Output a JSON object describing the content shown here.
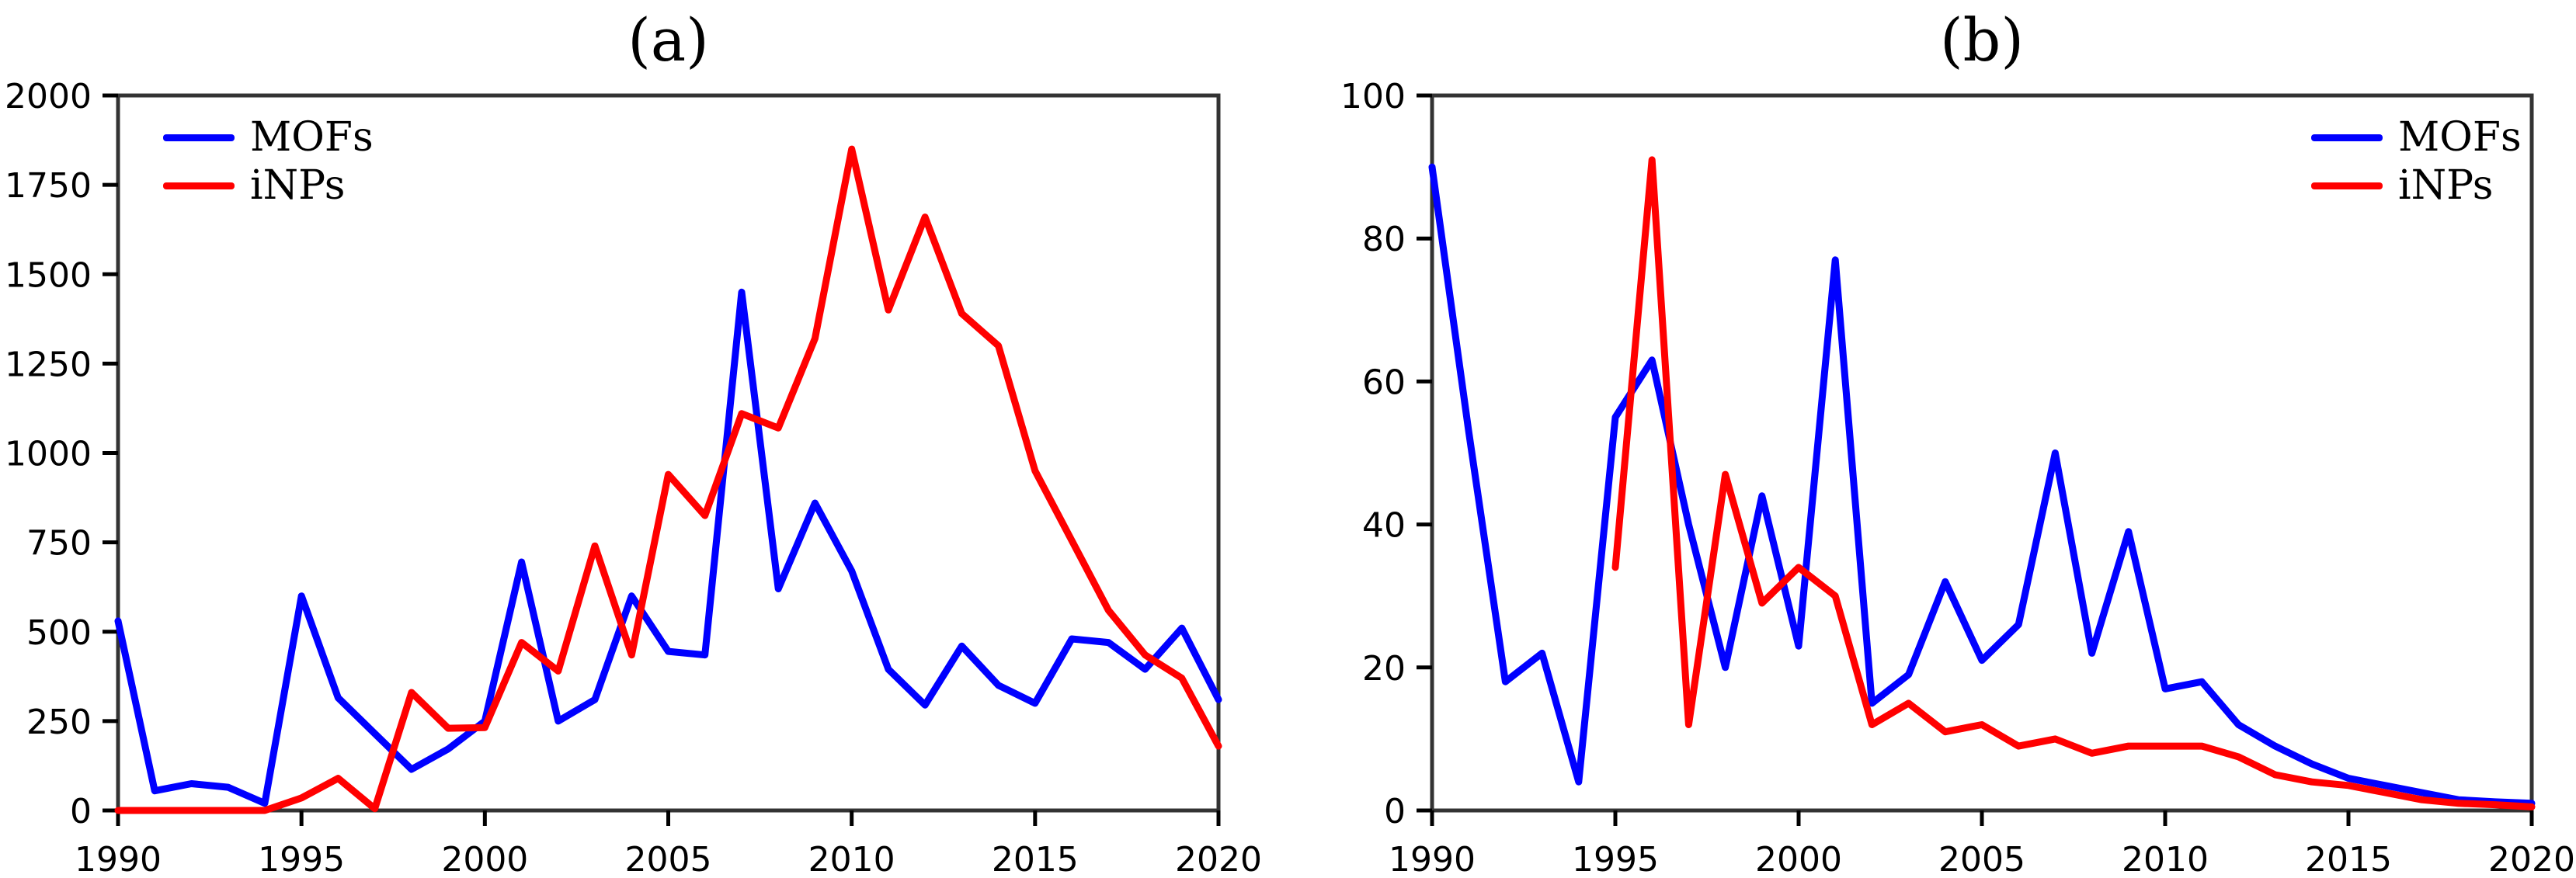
{
  "figure_background": "#ffffff",
  "axis_color": "#333333",
  "tick_label_color": "#000000",
  "chart_data": [
    {
      "id": "a",
      "type": "line",
      "title": "(a)",
      "xlabel": "",
      "ylabel": "",
      "xlim": [
        1990,
        2020
      ],
      "ylim": [
        0,
        2000
      ],
      "x_ticks": [
        1990,
        1995,
        2000,
        2005,
        2010,
        2015,
        2020
      ],
      "y_ticks": [
        0,
        250,
        500,
        750,
        1000,
        1250,
        1500,
        1750,
        2000
      ],
      "grid": false,
      "legend": {
        "position": "top-left",
        "items": [
          {
            "label": "MOFs",
            "color": "#0000ff"
          },
          {
            "label": "iNPs",
            "color": "#ff0000"
          }
        ]
      },
      "series": [
        {
          "name": "MOFs",
          "color": "#0000ff",
          "x_start": 1990,
          "values": [
            530,
            55,
            75,
            65,
            20,
            600,
            315,
            215,
            115,
            172,
            250,
            695,
            250,
            310,
            600,
            445,
            435,
            1450,
            620,
            860,
            670,
            395,
            295,
            460,
            350,
            300,
            480,
            470,
            395,
            510,
            310
          ]
        },
        {
          "name": "iNPs",
          "color": "#ff0000",
          "x_start": 1990,
          "values": [
            0,
            0,
            0,
            0,
            0,
            35,
            90,
            5,
            330,
            230,
            232,
            470,
            390,
            740,
            435,
            940,
            825,
            1110,
            1070,
            1320,
            1850,
            1400,
            1660,
            1390,
            1300,
            950,
            755,
            560,
            435,
            370,
            180
          ]
        }
      ]
    },
    {
      "id": "b",
      "type": "line",
      "title": "(b)",
      "xlabel": "",
      "ylabel": "",
      "xlim": [
        1990,
        2020
      ],
      "ylim": [
        0,
        100
      ],
      "x_ticks": [
        1990,
        1995,
        2000,
        2005,
        2010,
        2015,
        2020
      ],
      "y_ticks": [
        0,
        20,
        40,
        60,
        80,
        100
      ],
      "grid": false,
      "legend": {
        "position": "top-right",
        "items": [
          {
            "label": "MOFs",
            "color": "#0000ff"
          },
          {
            "label": "iNPs",
            "color": "#ff0000"
          }
        ]
      },
      "series": [
        {
          "name": "MOFs",
          "color": "#0000ff",
          "x_start": 1990,
          "values": [
            90,
            53,
            18,
            22,
            4,
            55,
            63,
            40,
            20,
            44,
            23,
            77,
            15,
            19,
            32,
            21,
            26,
            50,
            22,
            39,
            17,
            18,
            12,
            9,
            6.5,
            4.5,
            3.5,
            2.5,
            1.5,
            1.2,
            1
          ]
        },
        {
          "name": "iNPs",
          "color": "#ff0000",
          "x_start": 1995,
          "values": [
            34,
            91,
            12,
            47,
            29,
            34,
            30,
            12,
            15,
            11,
            12,
            9,
            10,
            8,
            9,
            9,
            9,
            7.5,
            5,
            4,
            3.5,
            2.5,
            1.5,
            1,
            0.8,
            0.5
          ]
        }
      ]
    }
  ]
}
